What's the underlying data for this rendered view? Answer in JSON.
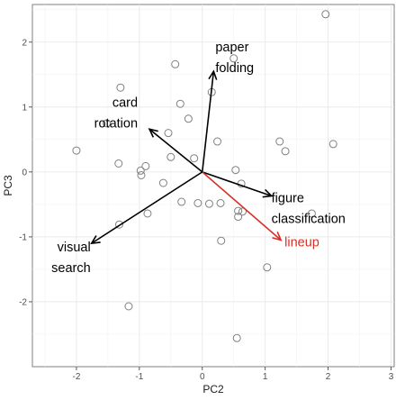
{
  "chart_data": {
    "type": "scatter",
    "title": "",
    "xlabel": "PC2",
    "ylabel": "PC3",
    "xlim": [
      -2.7,
      3.05
    ],
    "ylim": [
      -3.0,
      2.58
    ],
    "x_ticks": [
      -2,
      -1,
      0,
      1,
      2,
      3
    ],
    "y_ticks": [
      -2,
      -1,
      0,
      1,
      2
    ],
    "grid": true,
    "legend": "none",
    "points": [
      {
        "x": 1.96,
        "y": 2.43
      },
      {
        "x": 0.5,
        "y": 1.75
      },
      {
        "x": -0.43,
        "y": 1.66
      },
      {
        "x": -1.3,
        "y": 1.3
      },
      {
        "x": 0.15,
        "y": 1.23
      },
      {
        "x": -0.35,
        "y": 1.05
      },
      {
        "x": -0.22,
        "y": 0.82
      },
      {
        "x": -1.52,
        "y": 0.75
      },
      {
        "x": -0.54,
        "y": 0.6
      },
      {
        "x": 0.24,
        "y": 0.47
      },
      {
        "x": 1.23,
        "y": 0.47
      },
      {
        "x": 2.08,
        "y": 0.43
      },
      {
        "x": -2.0,
        "y": 0.33
      },
      {
        "x": 1.32,
        "y": 0.32
      },
      {
        "x": -0.5,
        "y": 0.23
      },
      {
        "x": -0.13,
        "y": 0.21
      },
      {
        "x": -1.33,
        "y": 0.13
      },
      {
        "x": -0.9,
        "y": 0.09
      },
      {
        "x": -0.98,
        "y": 0.02
      },
      {
        "x": -0.97,
        "y": -0.05
      },
      {
        "x": 0.53,
        "y": 0.03
      },
      {
        "x": -0.62,
        "y": -0.17
      },
      {
        "x": 0.62,
        "y": -0.18
      },
      {
        "x": -0.33,
        "y": -0.46
      },
      {
        "x": -0.07,
        "y": -0.48
      },
      {
        "x": 0.11,
        "y": -0.49
      },
      {
        "x": 0.29,
        "y": -0.48
      },
      {
        "x": 0.57,
        "y": -0.6
      },
      {
        "x": 0.64,
        "y": -0.61
      },
      {
        "x": 1.74,
        "y": -0.64
      },
      {
        "x": -0.87,
        "y": -0.64
      },
      {
        "x": 0.57,
        "y": -0.69
      },
      {
        "x": -1.32,
        "y": -0.81
      },
      {
        "x": 0.3,
        "y": -1.06
      },
      {
        "x": 1.03,
        "y": -1.47
      },
      {
        "x": -1.17,
        "y": -2.07
      },
      {
        "x": 0.55,
        "y": -2.56
      }
    ],
    "vectors": [
      {
        "label_lines": [
          "paper",
          "folding"
        ],
        "x": 0.18,
        "y": 1.55,
        "color": "#000000"
      },
      {
        "label_lines": [
          "card",
          "rotation"
        ],
        "x": -0.84,
        "y": 0.66,
        "color": "#000000"
      },
      {
        "label_lines": [
          "figure",
          "classification"
        ],
        "x": 1.1,
        "y": -0.37,
        "color": "#000000"
      },
      {
        "label_lines": [
          "lineup"
        ],
        "x": 1.25,
        "y": -1.05,
        "color": "#d73027"
      },
      {
        "label_lines": [
          "visual",
          "search"
        ],
        "x": -1.76,
        "y": -1.1,
        "color": "#000000"
      }
    ],
    "point_color": "#808080"
  }
}
